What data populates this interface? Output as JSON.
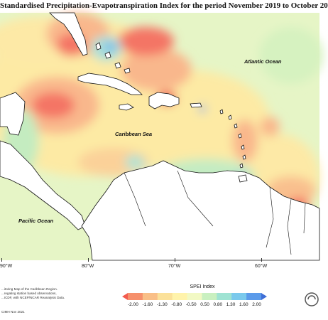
{
  "title": "Standardised Precipitation-Evapotranspiration Index for the period November 2019 to October 20",
  "ocean_labels": {
    "atlantic": "Atlantic Ocean",
    "caribbean": "Caribbean Sea",
    "pacific": "Pacific Ocean"
  },
  "longitude_labels": [
    "90°W",
    "80°W",
    "70°W",
    "60°W"
  ],
  "description_lines": [
    "...itoring Map of the Caribbean Region.",
    "...regating station based observations,",
    "...ICDF, with NCEP/NCAR Reanalysis Data."
  ],
  "credit": "CIMH Nov 2021",
  "legend": {
    "title": "SPEI Index",
    "ticks": [
      "-2.00",
      "-1.60",
      "-1.30",
      "-0.80",
      "-0.50",
      "0.50",
      "0.80",
      "1.30",
      "1.60",
      "2.00"
    ],
    "colors": [
      "#f25b4e",
      "#f6906c",
      "#f9bf87",
      "#fbe19a",
      "#fff3ab",
      "#f2f9c4",
      "#c9f0c0",
      "#9fe3d3",
      "#7ac9ec",
      "#5b9bea",
      "#3f6fd6"
    ]
  },
  "colors": {
    "very_dry": "#f26b5e",
    "dry": "#f9b28a",
    "mild_dry": "#fdd89a",
    "near_normal": "#fdf3b0",
    "mild_wet": "#dff3c0",
    "wet": "#b7ead3",
    "very_wet": "#7ec7ea",
    "land": "#ffffff"
  },
  "logo_icon": "cimh-logo-icon"
}
